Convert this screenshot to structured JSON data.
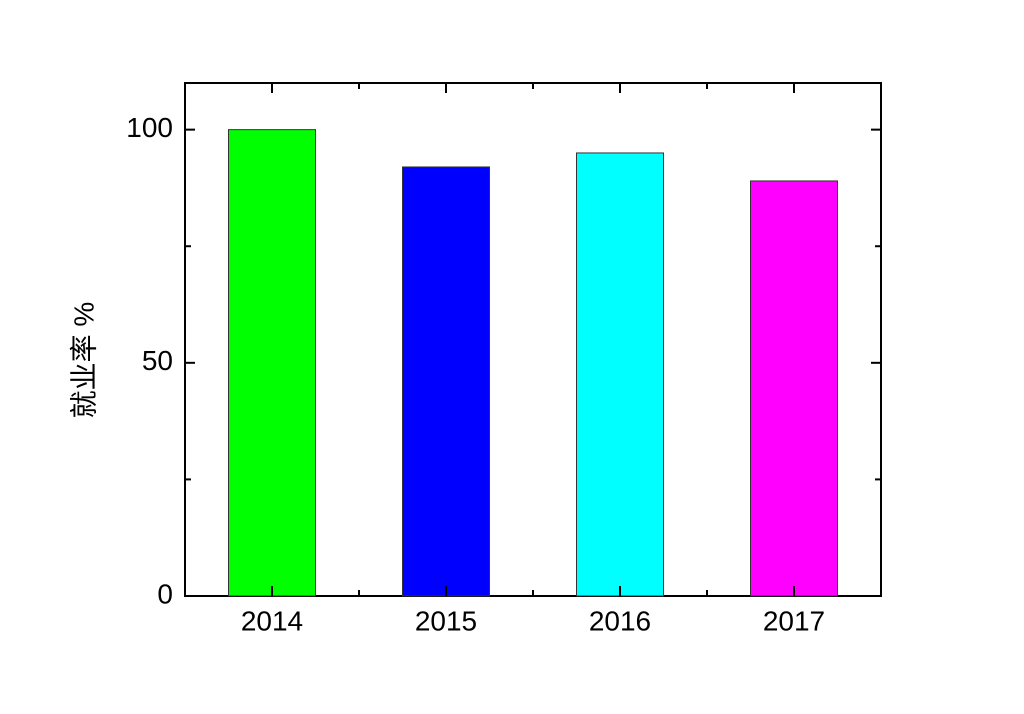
{
  "chart_data": {
    "type": "bar",
    "y_label": "就业率 %",
    "categories": [
      "2014",
      "2015",
      "2016",
      "2017"
    ],
    "values": [
      100,
      92,
      95,
      89
    ],
    "colors": [
      "#00ff00",
      "#0000ff",
      "#00ffff",
      "#ff00ff"
    ],
    "ylim": [
      0,
      110
    ],
    "yticks": [
      0,
      50,
      100
    ],
    "yminorticks": [
      25,
      75
    ],
    "grid": false
  }
}
